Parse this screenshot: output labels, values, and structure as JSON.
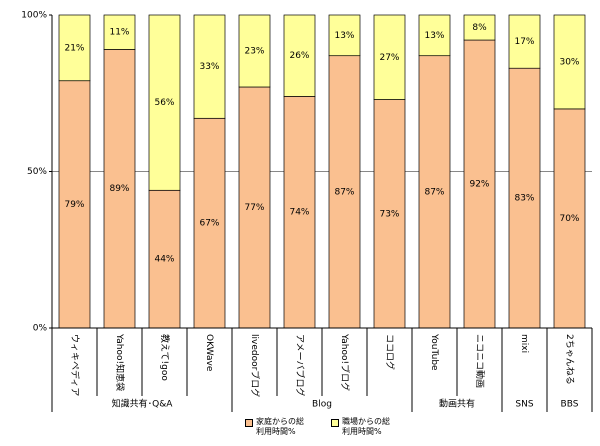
{
  "chart_data": {
    "type": "stacked_bar",
    "groups": [
      {
        "name": "知識共有･Q&A",
        "categories": [
          "ウィキペディア",
          "Yahoo!知恵袋",
          "教えて!goo",
          "OKWave"
        ]
      },
      {
        "name": "Blog",
        "categories": [
          "livedoorブログ",
          "アメーバブログ",
          "Yahoo!ブログ",
          "ココログ"
        ]
      },
      {
        "name": "動画共有",
        "categories": [
          "YouTube",
          "ニコニコ動画"
        ]
      },
      {
        "name": "SNS",
        "categories": [
          "mixi"
        ]
      },
      {
        "name": "BBS",
        "categories": [
          "2ちゃんねる"
        ]
      }
    ],
    "series": [
      {
        "name": "家庭からの総利用時間%",
        "color": "#fac090",
        "values": [
          79,
          89,
          44,
          67,
          77,
          74,
          87,
          73,
          87,
          92,
          83,
          70
        ],
        "value_labels": [
          "79%",
          "89%",
          "44%",
          "67%",
          "77%",
          "74%",
          "87%",
          "73%",
          "87%",
          "92%",
          "83%",
          "70%"
        ]
      },
      {
        "name": "職場からの総利用時間%",
        "color": "#ffff99",
        "values": [
          21,
          11,
          56,
          33,
          23,
          26,
          13,
          27,
          13,
          8,
          17,
          30
        ],
        "value_labels": [
          "21%",
          "11%",
          "56%",
          "33%",
          "23%",
          "26%",
          "13%",
          "27%",
          "13%",
          "8%",
          "17%",
          "30%"
        ]
      }
    ],
    "ylim": [
      0,
      100
    ],
    "yticks": [
      {
        "value": 0,
        "label": "0%"
      },
      {
        "value": 50,
        "label": "50%"
      },
      {
        "value": 100,
        "label": "100%"
      }
    ],
    "grid": true
  }
}
